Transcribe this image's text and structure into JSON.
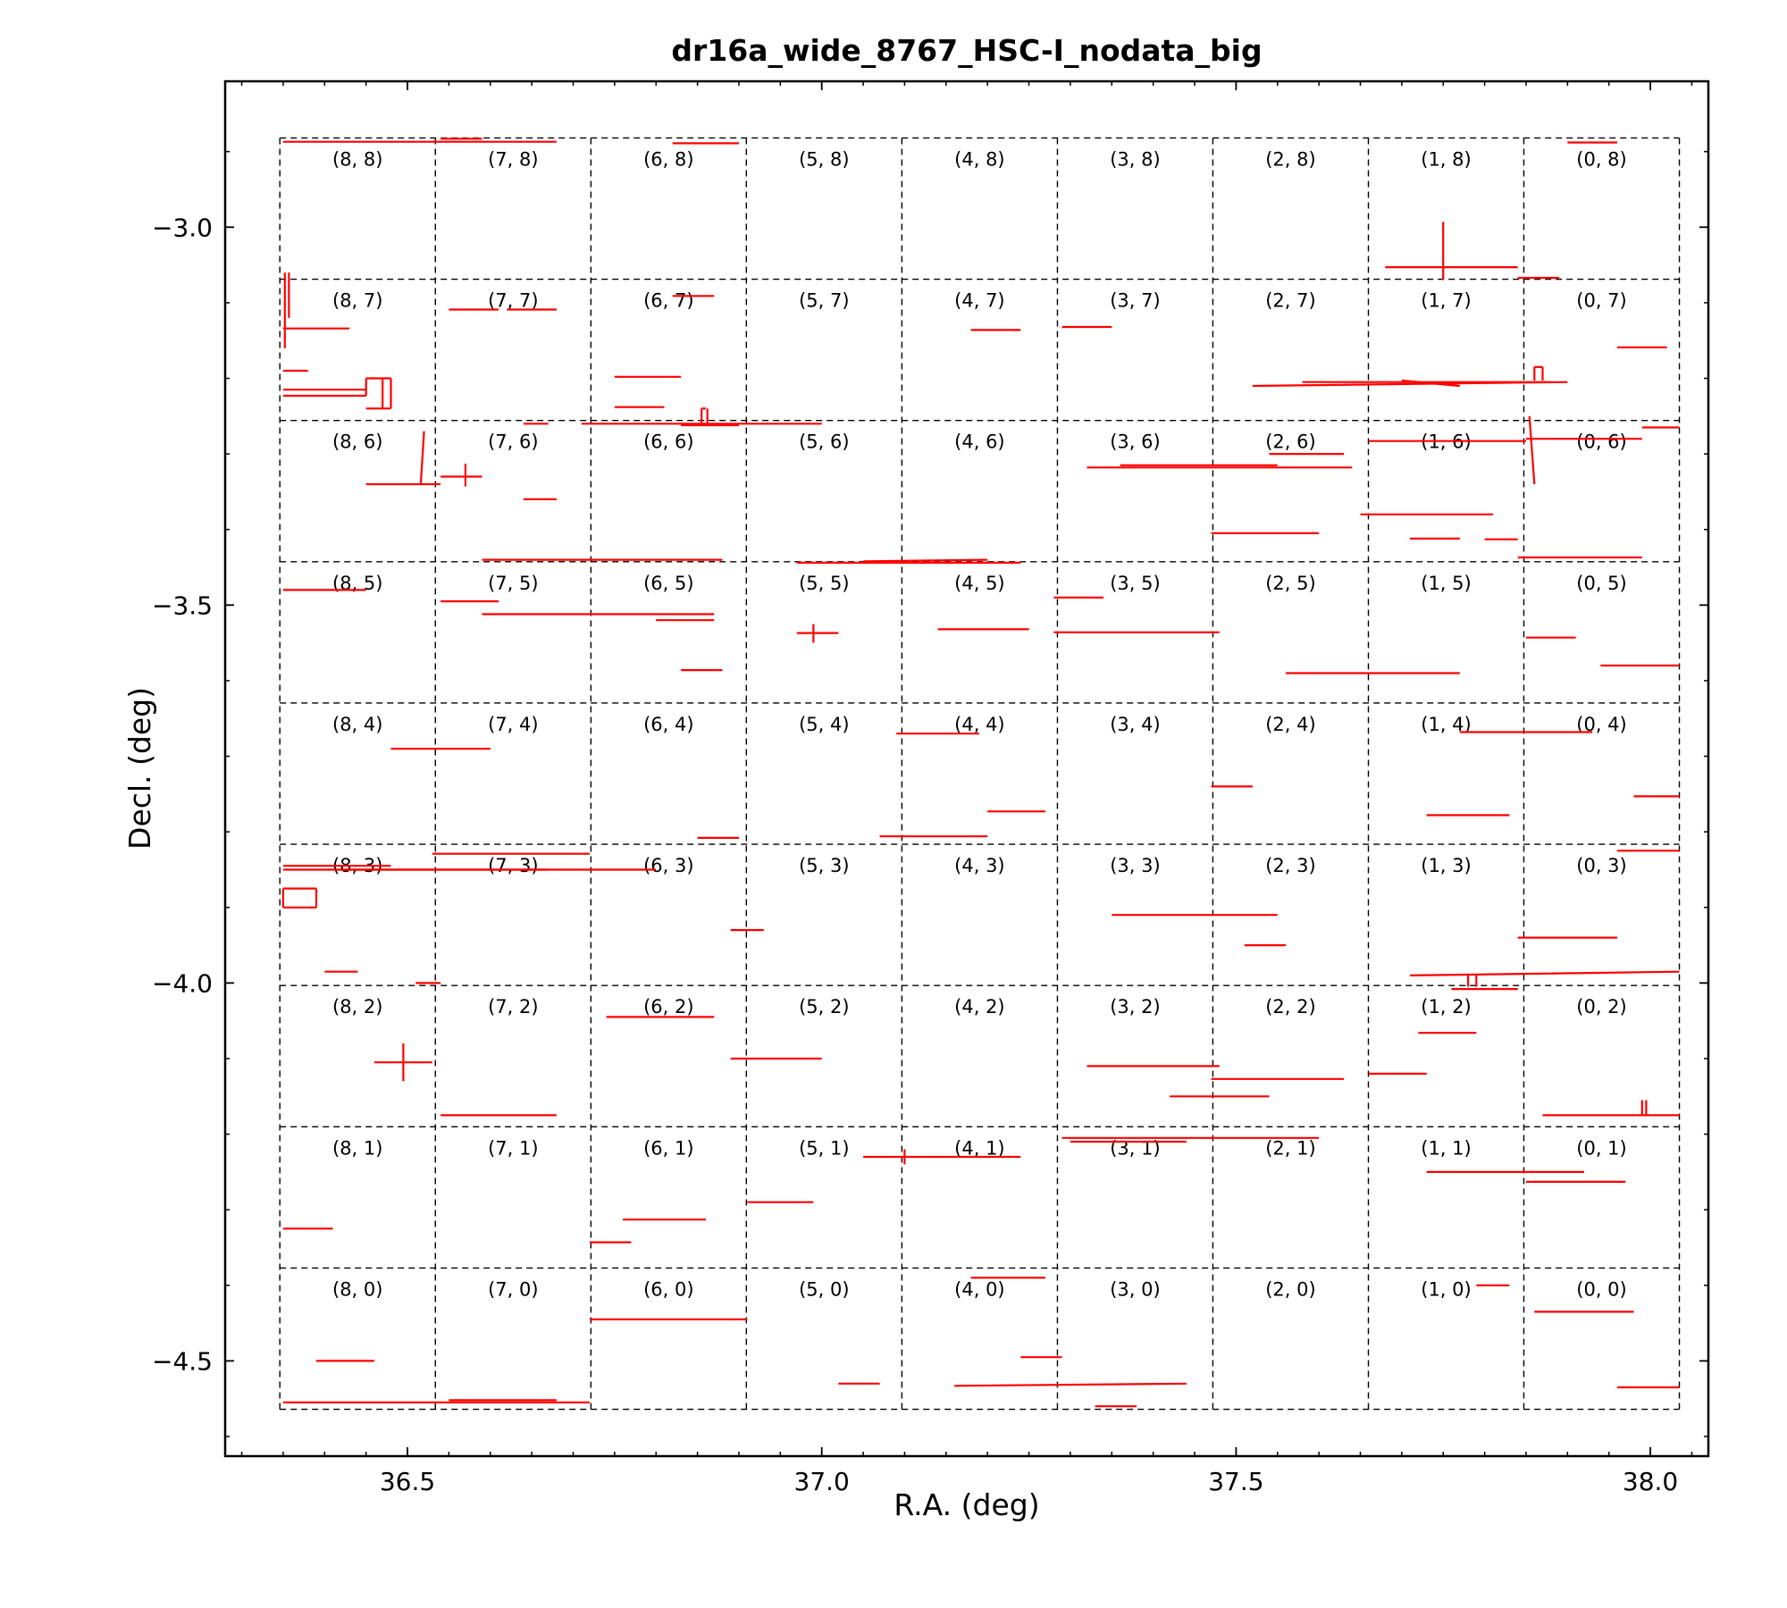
{
  "chart_data": {
    "type": "scatter",
    "title": "dr16a_wide_8767_HSC-I_nodata_big",
    "xlabel": "R.A.  (deg)",
    "ylabel": "Decl. (deg)",
    "xlim": [
      36.28,
      38.07
    ],
    "ylim": [
      -4.626,
      -2.807
    ],
    "xticks": [
      36.5,
      37.0,
      37.5,
      38.0
    ],
    "xtick_labels": [
      "36.5",
      "37.0",
      "37.5",
      "38.0"
    ],
    "yticks": [
      -3.0,
      -3.5,
      -4.0,
      -4.5
    ],
    "ytick_labels": [
      "−3.0",
      "−3.5",
      "−4.0",
      "−4.5"
    ],
    "x_minor_step": 0.05,
    "y_minor_step": 0.1,
    "tract_bounds": {
      "ra": [
        36.346,
        38.035
      ],
      "dec": [
        -4.564,
        -2.882
      ]
    },
    "patch_grid": {
      "ra_edges": [
        38.035,
        37.8473,
        37.6597,
        37.472,
        37.2844,
        37.0967,
        36.909,
        36.7214,
        36.5337,
        36.346
      ],
      "dec_edges": [
        -4.564,
        -4.3771,
        -4.1902,
        -4.0033,
        -3.8164,
        -3.6296,
        -3.4427,
        -3.2558,
        -3.0689,
        -2.882
      ],
      "labels": [
        "(8, 8)",
        "(7, 8)",
        "(6, 8)",
        "(5, 8)",
        "(4, 8)",
        "(3, 8)",
        "(2, 8)",
        "(1, 8)",
        "(0, 8)",
        "(8, 7)",
        "(7, 7)",
        "(6, 7)",
        "(5, 7)",
        "(4, 7)",
        "(3, 7)",
        "(2, 7)",
        "(1, 7)",
        "(0, 7)",
        "(8, 6)",
        "(7, 6)",
        "(6, 6)",
        "(5, 6)",
        "(4, 6)",
        "(3, 6)",
        "(2, 6)",
        "(1, 6)",
        "(0, 6)",
        "(8, 5)",
        "(7, 5)",
        "(6, 5)",
        "(5, 5)",
        "(4, 5)",
        "(3, 5)",
        "(2, 5)",
        "(1, 5)",
        "(0, 5)",
        "(8, 4)",
        "(7, 4)",
        "(6, 4)",
        "(5, 4)",
        "(4, 4)",
        "(3, 4)",
        "(2, 4)",
        "(1, 4)",
        "(0, 4)",
        "(8, 3)",
        "(7, 3)",
        "(6, 3)",
        "(5, 3)",
        "(4, 3)",
        "(3, 3)",
        "(2, 3)",
        "(1, 3)",
        "(0, 3)",
        "(8, 2)",
        "(7, 2)",
        "(6, 2)",
        "(5, 2)",
        "(4, 2)",
        "(3, 2)",
        "(2, 2)",
        "(1, 2)",
        "(0, 2)",
        "(8, 1)",
        "(7, 1)",
        "(6, 1)",
        "(5, 1)",
        "(4, 1)",
        "(3, 1)",
        "(2, 1)",
        "(1, 1)",
        "(0, 1)",
        "(8, 0)",
        "(7, 0)",
        "(6, 0)",
        "(5, 0)",
        "(4, 0)",
        "(3, 0)",
        "(2, 0)",
        "(1, 0)",
        "(0, 0)"
      ]
    },
    "mask_color": "#ff0000",
    "grid_color": "#000000",
    "mask_segments": [
      [
        [
          36.35,
          -2.887
        ],
        [
          36.68,
          -2.887
        ]
      ],
      [
        [
          36.54,
          -2.883
        ],
        [
          36.59,
          -2.883
        ]
      ],
      [
        [
          36.82,
          -2.889
        ],
        [
          36.9,
          -2.889
        ]
      ],
      [
        [
          37.9,
          -2.888
        ],
        [
          37.96,
          -2.888
        ]
      ],
      [
        [
          37.68,
          -3.053
        ],
        [
          37.84,
          -3.053
        ]
      ],
      [
        [
          37.75,
          -2.993
        ],
        [
          37.75,
          -3.07
        ]
      ],
      [
        [
          37.84,
          -3.067
        ],
        [
          37.89,
          -3.067
        ]
      ],
      [
        [
          36.352,
          -3.06
        ],
        [
          36.352,
          -3.16
        ]
      ],
      [
        [
          36.357,
          -3.06
        ],
        [
          36.357,
          -3.12
        ]
      ],
      [
        [
          36.35,
          -3.134
        ],
        [
          36.43,
          -3.134
        ]
      ],
      [
        [
          36.55,
          -3.109
        ],
        [
          36.61,
          -3.109
        ]
      ],
      [
        [
          36.62,
          -3.109
        ],
        [
          36.68,
          -3.109
        ]
      ],
      [
        [
          36.82,
          -3.091
        ],
        [
          36.87,
          -3.091
        ]
      ],
      [
        [
          37.18,
          -3.136
        ],
        [
          37.24,
          -3.136
        ]
      ],
      [
        [
          37.29,
          -3.132
        ],
        [
          37.35,
          -3.132
        ]
      ],
      [
        [
          37.96,
          -3.159
        ],
        [
          38.02,
          -3.159
        ]
      ],
      [
        [
          36.35,
          -3.19
        ],
        [
          36.38,
          -3.19
        ]
      ],
      [
        [
          36.35,
          -3.215
        ],
        [
          36.45,
          -3.215
        ]
      ],
      [
        [
          36.35,
          -3.223
        ],
        [
          36.45,
          -3.223
        ]
      ],
      [
        [
          36.45,
          -3.2
        ],
        [
          36.48,
          -3.2
        ]
      ],
      [
        [
          36.45,
          -3.2
        ],
        [
          36.45,
          -3.223
        ]
      ],
      [
        [
          36.47,
          -3.2
        ],
        [
          36.47,
          -3.24
        ]
      ],
      [
        [
          36.45,
          -3.24
        ],
        [
          36.48,
          -3.24
        ]
      ],
      [
        [
          36.48,
          -3.2
        ],
        [
          36.48,
          -3.24
        ]
      ],
      [
        [
          36.75,
          -3.198
        ],
        [
          36.83,
          -3.198
        ]
      ],
      [
        [
          36.75,
          -3.238
        ],
        [
          36.81,
          -3.238
        ]
      ],
      [
        [
          37.52,
          -3.21
        ],
        [
          37.9,
          -3.205
        ]
      ],
      [
        [
          37.58,
          -3.205
        ],
        [
          37.88,
          -3.205
        ]
      ],
      [
        [
          37.7,
          -3.203
        ],
        [
          37.77,
          -3.21
        ]
      ],
      [
        [
          37.86,
          -3.185
        ],
        [
          37.87,
          -3.185
        ]
      ],
      [
        [
          37.86,
          -3.185
        ],
        [
          37.86,
          -3.203
        ]
      ],
      [
        [
          37.87,
          -3.185
        ],
        [
          37.87,
          -3.203
        ]
      ],
      [
        [
          36.71,
          -3.26
        ],
        [
          37.0,
          -3.26
        ]
      ],
      [
        [
          36.83,
          -3.262
        ],
        [
          36.9,
          -3.262
        ]
      ],
      [
        [
          36.855,
          -3.24
        ],
        [
          36.86,
          -3.24
        ]
      ],
      [
        [
          36.855,
          -3.24
        ],
        [
          36.855,
          -3.26
        ]
      ],
      [
        [
          36.862,
          -3.24
        ],
        [
          36.862,
          -3.26
        ]
      ],
      [
        [
          36.64,
          -3.26
        ],
        [
          36.67,
          -3.26
        ]
      ],
      [
        [
          37.99,
          -3.265
        ],
        [
          38.035,
          -3.265
        ]
      ],
      [
        [
          37.66,
          -3.283
        ],
        [
          37.85,
          -3.283
        ]
      ],
      [
        [
          37.85,
          -3.28
        ],
        [
          37.99,
          -3.28
        ]
      ],
      [
        [
          37.854,
          -3.25
        ],
        [
          37.86,
          -3.34
        ]
      ],
      [
        [
          36.45,
          -3.34
        ],
        [
          36.54,
          -3.34
        ]
      ],
      [
        [
          36.52,
          -3.27
        ],
        [
          36.516,
          -3.34
        ]
      ],
      [
        [
          36.54,
          -3.33
        ],
        [
          36.59,
          -3.33
        ]
      ],
      [
        [
          36.57,
          -3.313
        ],
        [
          36.57,
          -3.343
        ]
      ],
      [
        [
          36.64,
          -3.36
        ],
        [
          36.68,
          -3.36
        ]
      ],
      [
        [
          37.32,
          -3.318
        ],
        [
          37.64,
          -3.318
        ]
      ],
      [
        [
          37.36,
          -3.315
        ],
        [
          37.55,
          -3.315
        ]
      ],
      [
        [
          37.54,
          -3.3
        ],
        [
          37.63,
          -3.3
        ]
      ],
      [
        [
          37.65,
          -3.38
        ],
        [
          37.81,
          -3.38
        ]
      ],
      [
        [
          37.47,
          -3.405
        ],
        [
          37.6,
          -3.405
        ]
      ],
      [
        [
          37.71,
          -3.412
        ],
        [
          37.77,
          -3.412
        ]
      ],
      [
        [
          37.8,
          -3.413
        ],
        [
          37.84,
          -3.413
        ]
      ],
      [
        [
          37.84,
          -3.437
        ],
        [
          37.99,
          -3.437
        ]
      ],
      [
        [
          36.59,
          -3.44
        ],
        [
          36.88,
          -3.44
        ]
      ],
      [
        [
          36.97,
          -3.444
        ],
        [
          37.24,
          -3.444
        ]
      ],
      [
        [
          37.05,
          -3.442
        ],
        [
          37.2,
          -3.44
        ]
      ],
      [
        [
          36.35,
          -3.48
        ],
        [
          36.45,
          -3.48
        ]
      ],
      [
        [
          36.54,
          -3.495
        ],
        [
          36.61,
          -3.495
        ]
      ],
      [
        [
          36.59,
          -3.512
        ],
        [
          36.87,
          -3.512
        ]
      ],
      [
        [
          36.8,
          -3.52
        ],
        [
          36.87,
          -3.52
        ]
      ],
      [
        [
          36.83,
          -3.586
        ],
        [
          36.88,
          -3.586
        ]
      ],
      [
        [
          36.97,
          -3.537
        ],
        [
          37.02,
          -3.537
        ]
      ],
      [
        [
          36.99,
          -3.525
        ],
        [
          36.99,
          -3.55
        ]
      ],
      [
        [
          37.14,
          -3.532
        ],
        [
          37.25,
          -3.532
        ]
      ],
      [
        [
          37.28,
          -3.49
        ],
        [
          37.34,
          -3.49
        ]
      ],
      [
        [
          37.28,
          -3.536
        ],
        [
          37.48,
          -3.536
        ]
      ],
      [
        [
          37.56,
          -3.59
        ],
        [
          37.77,
          -3.59
        ]
      ],
      [
        [
          37.85,
          -3.543
        ],
        [
          37.91,
          -3.543
        ]
      ],
      [
        [
          37.94,
          -3.58
        ],
        [
          38.035,
          -3.58
        ]
      ],
      [
        [
          36.48,
          -3.69
        ],
        [
          36.6,
          -3.69
        ]
      ],
      [
        [
          37.09,
          -3.67
        ],
        [
          37.19,
          -3.67
        ]
      ],
      [
        [
          37.07,
          -3.806
        ],
        [
          37.2,
          -3.806
        ]
      ],
      [
        [
          37.2,
          -3.773
        ],
        [
          37.27,
          -3.773
        ]
      ],
      [
        [
          37.47,
          -3.74
        ],
        [
          37.52,
          -3.74
        ]
      ],
      [
        [
          37.77,
          -3.668
        ],
        [
          37.93,
          -3.668
        ]
      ],
      [
        [
          37.73,
          -3.778
        ],
        [
          37.83,
          -3.778
        ]
      ],
      [
        [
          37.98,
          -3.753
        ],
        [
          38.035,
          -3.753
        ]
      ],
      [
        [
          36.85,
          -3.808
        ],
        [
          36.9,
          -3.808
        ]
      ],
      [
        [
          36.35,
          -3.845
        ],
        [
          36.48,
          -3.845
        ]
      ],
      [
        [
          36.35,
          -3.85
        ],
        [
          36.8,
          -3.85
        ]
      ],
      [
        [
          36.53,
          -3.829
        ],
        [
          36.72,
          -3.829
        ]
      ],
      [
        [
          36.42,
          -3.85
        ],
        [
          36.67,
          -3.85
        ]
      ],
      [
        [
          36.35,
          -3.875
        ],
        [
          36.39,
          -3.875
        ]
      ],
      [
        [
          36.35,
          -3.875
        ],
        [
          36.35,
          -3.9
        ]
      ],
      [
        [
          36.39,
          -3.875
        ],
        [
          36.39,
          -3.9
        ]
      ],
      [
        [
          36.35,
          -3.9
        ],
        [
          36.39,
          -3.9
        ]
      ],
      [
        [
          36.4,
          -3.985
        ],
        [
          36.44,
          -3.985
        ]
      ],
      [
        [
          36.51,
          -4.0
        ],
        [
          36.54,
          -4.0
        ]
      ],
      [
        [
          36.89,
          -3.93
        ],
        [
          36.93,
          -3.93
        ]
      ],
      [
        [
          37.35,
          -3.91
        ],
        [
          37.55,
          -3.91
        ]
      ],
      [
        [
          37.51,
          -3.95
        ],
        [
          37.56,
          -3.95
        ]
      ],
      [
        [
          37.84,
          -3.94
        ],
        [
          37.96,
          -3.94
        ]
      ],
      [
        [
          37.96,
          -3.825
        ],
        [
          38.035,
          -3.825
        ]
      ],
      [
        [
          37.71,
          -3.99
        ],
        [
          38.035,
          -3.985
        ]
      ],
      [
        [
          37.78,
          -3.99
        ],
        [
          37.78,
          -4.005
        ]
      ],
      [
        [
          37.79,
          -3.99
        ],
        [
          37.79,
          -4.005
        ]
      ],
      [
        [
          37.76,
          -4.008
        ],
        [
          37.84,
          -4.008
        ]
      ],
      [
        [
          36.74,
          -4.045
        ],
        [
          36.87,
          -4.045
        ]
      ],
      [
        [
          36.89,
          -4.1
        ],
        [
          37.0,
          -4.1
        ]
      ],
      [
        [
          36.46,
          -4.105
        ],
        [
          36.53,
          -4.105
        ]
      ],
      [
        [
          36.495,
          -4.08
        ],
        [
          36.495,
          -4.13
        ]
      ],
      [
        [
          36.54,
          -4.175
        ],
        [
          36.68,
          -4.175
        ]
      ],
      [
        [
          37.32,
          -4.11
        ],
        [
          37.48,
          -4.11
        ]
      ],
      [
        [
          37.47,
          -4.127
        ],
        [
          37.63,
          -4.127
        ]
      ],
      [
        [
          37.42,
          -4.15
        ],
        [
          37.54,
          -4.15
        ]
      ],
      [
        [
          37.66,
          -4.12
        ],
        [
          37.73,
          -4.12
        ]
      ],
      [
        [
          37.72,
          -4.066
        ],
        [
          37.79,
          -4.066
        ]
      ],
      [
        [
          37.87,
          -4.175
        ],
        [
          38.035,
          -4.175
        ]
      ],
      [
        [
          37.99,
          -4.155
        ],
        [
          37.99,
          -4.175
        ]
      ],
      [
        [
          37.995,
          -4.155
        ],
        [
          37.995,
          -4.175
        ]
      ],
      [
        [
          37.05,
          -4.23
        ],
        [
          37.24,
          -4.23
        ]
      ],
      [
        [
          37.1,
          -4.22
        ],
        [
          37.1,
          -4.24
        ]
      ],
      [
        [
          37.29,
          -4.205
        ],
        [
          37.6,
          -4.205
        ]
      ],
      [
        [
          37.3,
          -4.21
        ],
        [
          37.44,
          -4.21
        ]
      ],
      [
        [
          37.73,
          -4.25
        ],
        [
          37.92,
          -4.25
        ]
      ],
      [
        [
          37.85,
          -4.263
        ],
        [
          37.97,
          -4.263
        ]
      ],
      [
        [
          36.35,
          -4.325
        ],
        [
          36.41,
          -4.325
        ]
      ],
      [
        [
          36.76,
          -4.313
        ],
        [
          36.86,
          -4.313
        ]
      ],
      [
        [
          36.72,
          -4.343
        ],
        [
          36.77,
          -4.343
        ]
      ],
      [
        [
          36.91,
          -4.29
        ],
        [
          36.99,
          -4.29
        ]
      ],
      [
        [
          37.18,
          -4.39
        ],
        [
          37.27,
          -4.39
        ]
      ],
      [
        [
          37.24,
          -4.495
        ],
        [
          37.29,
          -4.495
        ]
      ],
      [
        [
          37.79,
          -4.4
        ],
        [
          37.83,
          -4.4
        ]
      ],
      [
        [
          37.86,
          -4.435
        ],
        [
          37.98,
          -4.435
        ]
      ],
      [
        [
          37.96,
          -4.535
        ],
        [
          38.035,
          -4.535
        ]
      ],
      [
        [
          36.72,
          -4.445
        ],
        [
          36.91,
          -4.445
        ]
      ],
      [
        [
          36.39,
          -4.5
        ],
        [
          36.46,
          -4.5
        ]
      ],
      [
        [
          36.35,
          -4.555
        ],
        [
          36.72,
          -4.555
        ]
      ],
      [
        [
          36.55,
          -4.552
        ],
        [
          36.68,
          -4.552
        ]
      ],
      [
        [
          37.02,
          -4.53
        ],
        [
          37.07,
          -4.53
        ]
      ],
      [
        [
          37.16,
          -4.533
        ],
        [
          37.44,
          -4.53
        ]
      ],
      [
        [
          37.33,
          -4.56
        ],
        [
          37.38,
          -4.56
        ]
      ]
    ]
  }
}
